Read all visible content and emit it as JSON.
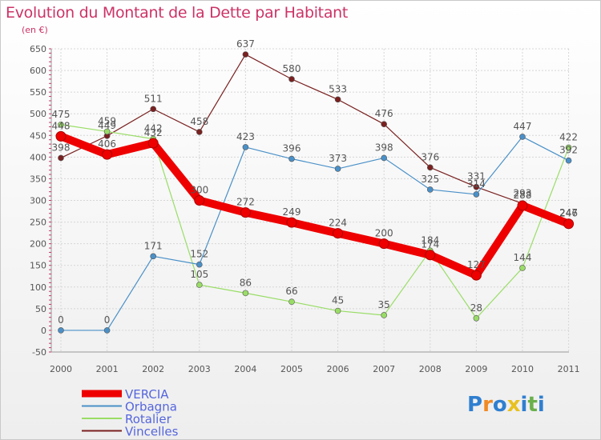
{
  "header": {
    "title": "Evolution du Montant de la Dette par Habitant",
    "subtitle": "(en €)"
  },
  "chart_data": {
    "type": "line",
    "x": [
      "2000",
      "2001",
      "2002",
      "2003",
      "2004",
      "2005",
      "2006",
      "2007",
      "2008",
      "2009",
      "2010",
      "2011"
    ],
    "yticks": [
      -50,
      0,
      50,
      100,
      150,
      200,
      250,
      300,
      350,
      400,
      450,
      500,
      550,
      600,
      650
    ],
    "ylim": [
      -50,
      650
    ],
    "grid": true,
    "legend_position": "bottom-left",
    "series": [
      {
        "name": "VERCIA",
        "color": "#ee0000",
        "values": [
          448,
          406,
          432,
          300,
          272,
          249,
          224,
          200,
          174,
          127,
          288,
          246
        ]
      },
      {
        "name": "Orbagna",
        "color": "#4a90c8",
        "values": [
          0,
          0,
          171,
          152,
          423,
          396,
          373,
          398,
          325,
          314,
          447,
          392
        ]
      },
      {
        "name": "Rotalier",
        "color": "#99dd66",
        "values": [
          475,
          459,
          442,
          105,
          86,
          66,
          45,
          35,
          184,
          28,
          144,
          422
        ]
      },
      {
        "name": "Vincelles",
        "color": "#7a2020",
        "values": [
          398,
          449,
          511,
          458,
          637,
          580,
          533,
          476,
          376,
          331,
          293,
          247
        ]
      }
    ]
  },
  "logo": {
    "letters": [
      "P",
      "r",
      "o",
      "x",
      "i",
      "t",
      "i"
    ],
    "colors": [
      "#2f7fd0",
      "#f08a24",
      "#2f7fd0",
      "#e8c020",
      "#2f7fd0",
      "#6ab04c",
      "#2f7fd0"
    ]
  }
}
